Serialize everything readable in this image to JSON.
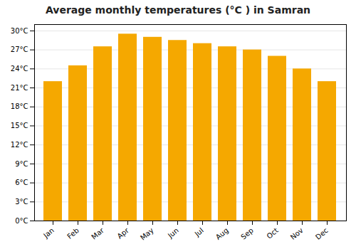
{
  "chart_data": {
    "type": "bar",
    "title": "Average monthly temperatures (°C ) in Samran",
    "categories": [
      "Jan",
      "Feb",
      "Mar",
      "Apr",
      "May",
      "Jun",
      "Jul",
      "Aug",
      "Sep",
      "Oct",
      "Nov",
      "Dec"
    ],
    "values": [
      22.0,
      24.5,
      27.5,
      29.5,
      29.0,
      28.5,
      28.0,
      27.5,
      27.0,
      26.0,
      24.0,
      22.0
    ],
    "color": "#F5A800",
    "ylim": [
      0,
      31
    ],
    "yticks": [
      {
        "value": 0,
        "label": "0°C"
      },
      {
        "value": 3,
        "label": "3°C"
      },
      {
        "value": 6,
        "label": "6°C"
      },
      {
        "value": 9,
        "label": "9°C"
      },
      {
        "value": 12,
        "label": "12°C"
      },
      {
        "value": 15,
        "label": "15°C"
      },
      {
        "value": 18,
        "label": "18°C"
      },
      {
        "value": 21,
        "label": "21°C"
      },
      {
        "value": 24,
        "label": "24°C"
      },
      {
        "value": 27,
        "label": "27°C"
      },
      {
        "value": 30,
        "label": "30°C"
      }
    ],
    "grid": true
  }
}
